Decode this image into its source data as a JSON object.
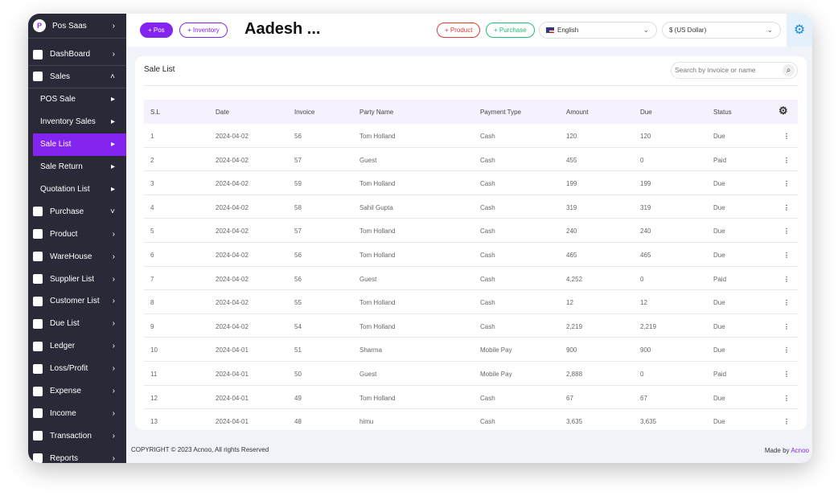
{
  "sidebar": {
    "brand": "Pos Saas",
    "items": [
      {
        "label": "DashBoard",
        "arrow": "›"
      },
      {
        "label": "Sales",
        "arrow": "˄"
      },
      {
        "label": "POS Sale",
        "arrow": "▸",
        "sub": true
      },
      {
        "label": "Inventory Sales",
        "arrow": "▸",
        "sub": true
      },
      {
        "label": "Sale List",
        "arrow": "▸",
        "sub": true,
        "active": true
      },
      {
        "label": "Sale Return",
        "arrow": "▸",
        "sub": true
      },
      {
        "label": "Quotation List",
        "arrow": "▸",
        "sub": true
      },
      {
        "label": "Purchase",
        "arrow": "˅"
      },
      {
        "label": "Product",
        "arrow": "›"
      },
      {
        "label": "WareHouse",
        "arrow": "›"
      },
      {
        "label": "Supplier List",
        "arrow": "›"
      },
      {
        "label": "Customer List",
        "arrow": "›"
      },
      {
        "label": "Due List",
        "arrow": "›"
      },
      {
        "label": "Ledger",
        "arrow": "›"
      },
      {
        "label": "Loss/Profit",
        "arrow": "›"
      },
      {
        "label": "Expense",
        "arrow": "›"
      },
      {
        "label": "Income",
        "arrow": "›"
      },
      {
        "label": "Transaction",
        "arrow": "›"
      },
      {
        "label": "Reports",
        "arrow": "›"
      }
    ]
  },
  "header": {
    "pos": "+ Pos",
    "inventory": "+ Inventory",
    "title": "Aadesh ...",
    "product": "+ Product",
    "purchase": "+ Purchase",
    "language": "English",
    "currency": "$ (US Dollar)"
  },
  "card": {
    "title": "Sale List",
    "search_placeholder": "Search by invoice or name"
  },
  "table": {
    "columns": [
      "S.L",
      "Date",
      "Invoice",
      "Party Name",
      "Payment Type",
      "Amount",
      "Due",
      "Status"
    ],
    "rows": [
      [
        "1",
        "2024-04-02",
        "56",
        "Tom Holland",
        "Cash",
        "120",
        "120",
        "Due"
      ],
      [
        "2",
        "2024-04-02",
        "57",
        "Guest",
        "Cash",
        "455",
        "0",
        "Paid"
      ],
      [
        "3",
        "2024-04-02",
        "59",
        "Tom Holland",
        "Cash",
        "199",
        "199",
        "Due"
      ],
      [
        "4",
        "2024-04-02",
        "58",
        "Sahil Gupta",
        "Cash",
        "319",
        "319",
        "Due"
      ],
      [
        "5",
        "2024-04-02",
        "57",
        "Tom Holland",
        "Cash",
        "240",
        "240",
        "Due"
      ],
      [
        "6",
        "2024-04-02",
        "56",
        "Tom Holland",
        "Cash",
        "465",
        "465",
        "Due"
      ],
      [
        "7",
        "2024-04-02",
        "56",
        "Guest",
        "Cash",
        "4,252",
        "0",
        "Paid"
      ],
      [
        "8",
        "2024-04-02",
        "55",
        "Tom Holland",
        "Cash",
        "12",
        "12",
        "Due"
      ],
      [
        "9",
        "2024-04-02",
        "54",
        "Tom Holland",
        "Cash",
        "2,219",
        "2,219",
        "Due"
      ],
      [
        "10",
        "2024-04-01",
        "51",
        "Sharma",
        "Mobile Pay",
        "900",
        "900",
        "Due"
      ],
      [
        "11",
        "2024-04-01",
        "50",
        "Guest",
        "Mobile Pay",
        "2,888",
        "0",
        "Paid"
      ],
      [
        "12",
        "2024-04-01",
        "49",
        "Tom Holland",
        "Cash",
        "67",
        "67",
        "Due"
      ],
      [
        "13",
        "2024-04-01",
        "48",
        "himu",
        "Cash",
        "3,635",
        "3,635",
        "Due"
      ]
    ]
  },
  "footer": {
    "copyright": "COPYRIGHT © 2023 Acnoo, All rights Reserved",
    "made_by": "Made by",
    "made_by_link": "Acnoo"
  },
  "colors": {
    "accent": "#8424f0",
    "sidebar": "#2a2937",
    "product": "#e53935",
    "purchase": "#1dbf73",
    "gear": "#1a8be0"
  }
}
